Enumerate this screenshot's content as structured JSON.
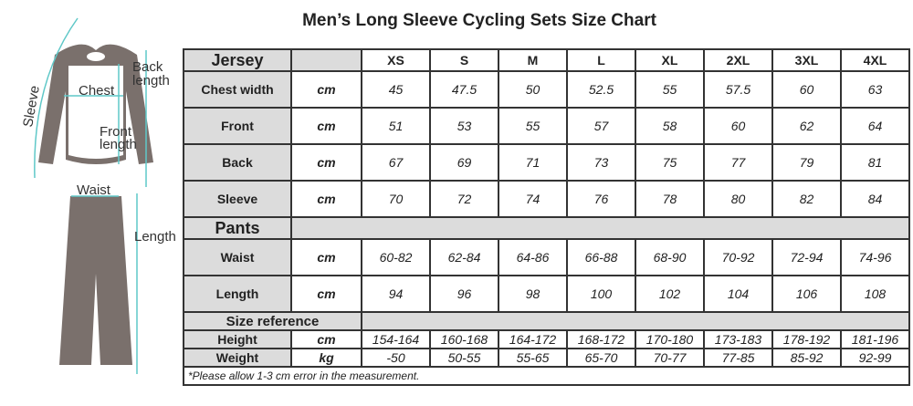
{
  "title": "Men’s Long Sleeve Cycling Sets Size Chart",
  "figure": {
    "labels": {
      "sleeve": "Sleeve",
      "chest": "Chest",
      "back": "Back",
      "back2": "length",
      "front": "Front",
      "front2": "length",
      "waist": "Waist",
      "length": "Length"
    }
  },
  "table": {
    "sizes": [
      "XS",
      "S",
      "M",
      "L",
      "XL",
      "2XL",
      "3XL",
      "4XL"
    ],
    "jersey": {
      "label": "Jersey",
      "rows": [
        {
          "label": "Chest width",
          "unit": "cm",
          "values": [
            "45",
            "47.5",
            "50",
            "52.5",
            "55",
            "57.5",
            "60",
            "63"
          ]
        },
        {
          "label": "Front",
          "unit": "cm",
          "values": [
            "51",
            "53",
            "55",
            "57",
            "58",
            "60",
            "62",
            "64"
          ]
        },
        {
          "label": "Back",
          "unit": "cm",
          "values": [
            "67",
            "69",
            "71",
            "73",
            "75",
            "77",
            "79",
            "81"
          ]
        },
        {
          "label": "Sleeve",
          "unit": "cm",
          "values": [
            "70",
            "72",
            "74",
            "76",
            "78",
            "80",
            "82",
            "84"
          ]
        }
      ]
    },
    "pants": {
      "label": "Pants",
      "rows": [
        {
          "label": "Waist",
          "unit": "cm",
          "values": [
            "60-82",
            "62-84",
            "64-86",
            "66-88",
            "68-90",
            "70-92",
            "72-94",
            "74-96"
          ]
        },
        {
          "label": "Length",
          "unit": "cm",
          "values": [
            "94",
            "96",
            "98",
            "100",
            "102",
            "104",
            "106",
            "108"
          ]
        }
      ]
    },
    "reference": {
      "label": "Size reference",
      "rows": [
        {
          "label": "Height",
          "unit": "cm",
          "values": [
            "154-164",
            "160-168",
            "164-172",
            "168-172",
            "170-180",
            "173-183",
            "178-192",
            "181-196"
          ]
        },
        {
          "label": "Weight",
          "unit": "kg",
          "values": [
            "-50",
            "50-55",
            "55-65",
            "65-70",
            "70-77",
            "77-85",
            "85-92",
            "92-99"
          ]
        }
      ]
    },
    "note": "*Please allow 1-3 cm error in the measurement."
  }
}
